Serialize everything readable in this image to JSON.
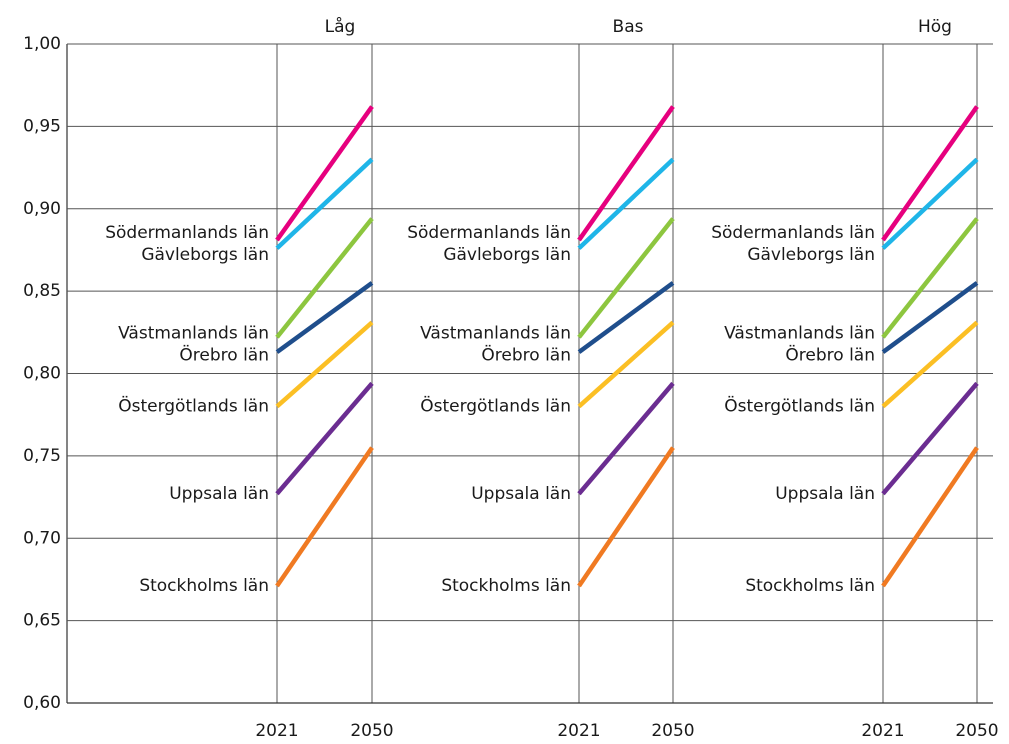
{
  "chart_data": [
    {
      "type": "slope",
      "title": "Låg",
      "categories": [
        "2021",
        "2050"
      ],
      "ylim": [
        0.6,
        1.0
      ],
      "yticks": [
        {
          "value": 0.6,
          "label": "0,60"
        },
        {
          "value": 0.65,
          "label": "0,65"
        },
        {
          "value": 0.7,
          "label": "0,70"
        },
        {
          "value": 0.75,
          "label": "0,75"
        },
        {
          "value": 0.8,
          "label": "0,80"
        },
        {
          "value": 0.85,
          "label": "0,85"
        },
        {
          "value": 0.9,
          "label": "0,90"
        },
        {
          "value": 0.95,
          "label": "0,95"
        },
        {
          "value": 1.0,
          "label": "1,00"
        }
      ],
      "grid": true,
      "series": [
        {
          "name": "Södermanlands län",
          "color": "#e6007e",
          "values": [
            0.881,
            0.962
          ]
        },
        {
          "name": "Gävleborgs län",
          "color": "#1fb5e8",
          "values": [
            0.876,
            0.93
          ]
        },
        {
          "name": "Västmanlands län",
          "color": "#8dc63f",
          "values": [
            0.822,
            0.894
          ]
        },
        {
          "name": "Örebro län",
          "color": "#1f4e8c",
          "values": [
            0.813,
            0.855
          ]
        },
        {
          "name": "Östergötlands län",
          "color": "#fbbf24",
          "values": [
            0.78,
            0.831
          ]
        },
        {
          "name": "Uppsala län",
          "color": "#6b2d91",
          "values": [
            0.727,
            0.794
          ]
        },
        {
          "name": "Stockholms län",
          "color": "#f07a22",
          "values": [
            0.671,
            0.755
          ]
        }
      ]
    },
    {
      "type": "slope",
      "title": "Bas",
      "categories": [
        "2021",
        "2050"
      ],
      "ylim": [
        0.6,
        1.0
      ],
      "series": [
        {
          "name": "Södermanlands län",
          "color": "#e6007e",
          "values": [
            0.881,
            0.962
          ]
        },
        {
          "name": "Gävleborgs län",
          "color": "#1fb5e8",
          "values": [
            0.876,
            0.93
          ]
        },
        {
          "name": "Västmanlands län",
          "color": "#8dc63f",
          "values": [
            0.822,
            0.894
          ]
        },
        {
          "name": "Örebro län",
          "color": "#1f4e8c",
          "values": [
            0.813,
            0.855
          ]
        },
        {
          "name": "Östergötlands län",
          "color": "#fbbf24",
          "values": [
            0.78,
            0.831
          ]
        },
        {
          "name": "Uppsala län",
          "color": "#6b2d91",
          "values": [
            0.727,
            0.794
          ]
        },
        {
          "name": "Stockholms län",
          "color": "#f07a22",
          "values": [
            0.671,
            0.755
          ]
        }
      ]
    },
    {
      "type": "slope",
      "title": "Hög",
      "categories": [
        "2021",
        "2050"
      ],
      "ylim": [
        0.6,
        1.0
      ],
      "series": [
        {
          "name": "Södermanlands län",
          "color": "#e6007e",
          "values": [
            0.881,
            0.962
          ]
        },
        {
          "name": "Gävleborgs län",
          "color": "#1fb5e8",
          "values": [
            0.876,
            0.93
          ]
        },
        {
          "name": "Västmanlands län",
          "color": "#8dc63f",
          "values": [
            0.822,
            0.894
          ]
        },
        {
          "name": "Örebro län",
          "color": "#1f4e8c",
          "values": [
            0.813,
            0.855
          ]
        },
        {
          "name": "Östergötlands län",
          "color": "#fbbf24",
          "values": [
            0.78,
            0.831
          ]
        },
        {
          "name": "Uppsala län",
          "color": "#6b2d91",
          "values": [
            0.727,
            0.794
          ]
        },
        {
          "name": "Stockholms län",
          "color": "#f07a22",
          "values": [
            0.671,
            0.755
          ]
        }
      ]
    }
  ]
}
